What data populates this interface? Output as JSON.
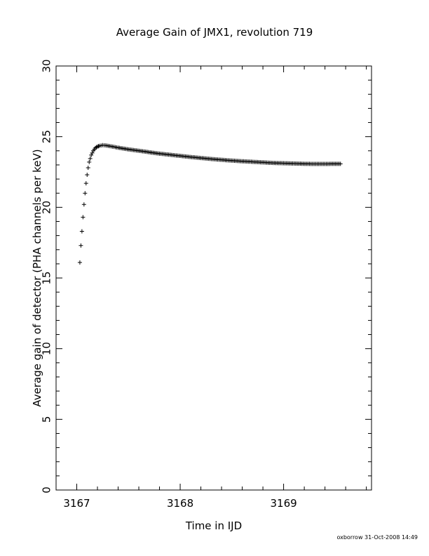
{
  "chart_data": {
    "type": "scatter",
    "title": "Average Gain of JMX1, revolution 719",
    "xlabel": "Time in IJD",
    "ylabel": "Average gain of detector (PHA channels per keV)",
    "xlim": [
      3166.8,
      3169.85
    ],
    "ylim": [
      0,
      30
    ],
    "xticks": [
      3167,
      3168,
      3169
    ],
    "yticks": [
      0,
      5,
      10,
      15,
      20,
      25,
      30
    ],
    "marker": "plus",
    "series": [
      {
        "x": [
          3167.03,
          3167.04,
          3167.05,
          3167.06,
          3167.07,
          3167.08,
          3167.09,
          3167.1,
          3167.11,
          3167.12,
          3167.14,
          3167.16,
          3167.18,
          3167.2,
          3167.22,
          3167.25,
          3167.28,
          3167.32,
          3167.36,
          3167.4,
          3167.5,
          3167.6,
          3167.7,
          3167.8,
          3167.9,
          3168.0,
          3168.1,
          3168.2,
          3168.3,
          3168.4,
          3168.5,
          3168.6,
          3168.7,
          3168.8,
          3168.9,
          3169.0,
          3169.1,
          3169.2,
          3169.3,
          3169.4,
          3169.5,
          3169.55
        ],
        "y": [
          16.1,
          17.3,
          18.3,
          19.3,
          20.2,
          21.0,
          21.7,
          22.3,
          22.8,
          23.2,
          23.7,
          24.0,
          24.2,
          24.3,
          24.35,
          24.4,
          24.38,
          24.33,
          24.28,
          24.22,
          24.1,
          24.0,
          23.9,
          23.8,
          23.72,
          23.64,
          23.56,
          23.49,
          23.42,
          23.36,
          23.31,
          23.26,
          23.22,
          23.18,
          23.14,
          23.12,
          23.1,
          23.08,
          23.07,
          23.07,
          23.08,
          23.08
        ]
      }
    ]
  },
  "footer": "oxborrow 31-Oct-2008 14:49"
}
